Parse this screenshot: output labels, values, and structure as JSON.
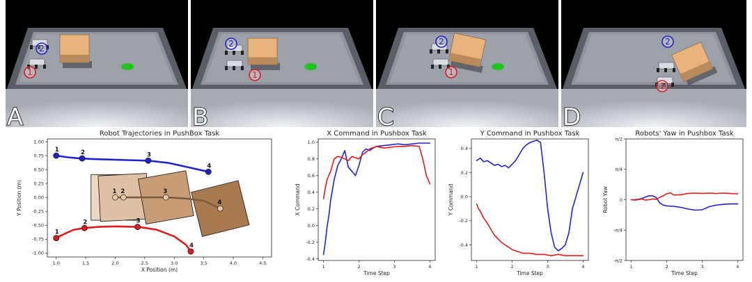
{
  "scenes": [
    {
      "letter": "A",
      "robot1": "1",
      "robot2": "2"
    },
    {
      "letter": "B",
      "robot1": "1",
      "robot2": "2"
    },
    {
      "letter": "C",
      "robot1": "1",
      "robot2": "2"
    },
    {
      "letter": "D",
      "robot1": "1",
      "robot2": "2"
    }
  ],
  "colors": {
    "red": "#e01b1b",
    "blue": "#1f23c8",
    "box": "#e8b47c",
    "goal": "#1fc41f"
  },
  "chart_data": [
    {
      "type": "line",
      "title": "Robot Trajectories in PushBox Task",
      "xlabel": "X Position (m)",
      "ylabel": "Y Position (m)",
      "xlim": [
        0.85,
        4.65
      ],
      "ylim": [
        -1.07,
        1.05
      ],
      "xticks": [
        "1.0",
        "1.5",
        "2.0",
        "2.5",
        "3.0",
        "3.5",
        "4.0",
        "4.5"
      ],
      "yticks": [
        "-1.00",
        "-0.75",
        "-0.50",
        "-0.25",
        "0.00",
        "0.25",
        "0.50",
        "0.75",
        "1.00"
      ],
      "series": [
        {
          "color": "#1f23c8",
          "x": [
            1.0,
            1.2,
            1.4,
            1.6,
            1.9,
            2.2,
            2.56,
            2.9,
            3.2,
            3.58
          ],
          "y": [
            0.75,
            0.72,
            0.7,
            0.69,
            0.68,
            0.67,
            0.66,
            0.62,
            0.55,
            0.46
          ]
        },
        {
          "color": "#e01b1b",
          "x": [
            1.0,
            1.15,
            1.3,
            1.48,
            1.7,
            2.0,
            2.4,
            2.7,
            3.0,
            3.2,
            3.28
          ],
          "y": [
            -0.73,
            -0.65,
            -0.58,
            -0.55,
            -0.53,
            -0.52,
            -0.53,
            -0.58,
            -0.7,
            -0.85,
            -0.97
          ]
        },
        {
          "color": "#7d5a3c",
          "x": [
            2.0,
            2.14,
            2.4,
            2.6,
            2.86,
            3.2,
            3.5,
            3.78
          ],
          "y": [
            0.0,
            0.0,
            0.0,
            0.0,
            0.0,
            -0.02,
            -0.06,
            -0.2
          ]
        }
      ],
      "waypoints": [
        {
          "label": "1",
          "x": 1.0,
          "y": 0.75,
          "color": "#1f23c8"
        },
        {
          "label": "2",
          "x": 1.44,
          "y": 0.7,
          "color": "#1f23c8"
        },
        {
          "label": "3",
          "x": 2.56,
          "y": 0.66,
          "color": "#1f23c8"
        },
        {
          "label": "4",
          "x": 3.58,
          "y": 0.46,
          "color": "#1f23c8"
        },
        {
          "label": "1",
          "x": 1.0,
          "y": -0.73,
          "color": "#e01b1b"
        },
        {
          "label": "2",
          "x": 1.48,
          "y": -0.55,
          "color": "#e01b1b"
        },
        {
          "label": "3",
          "x": 2.38,
          "y": -0.53,
          "color": "#e01b1b"
        },
        {
          "label": "4",
          "x": 3.28,
          "y": -0.97,
          "color": "#e01b1b"
        },
        {
          "label": "1",
          "x": 2.0,
          "y": 0.0,
          "color": "#7d5a3c"
        },
        {
          "label": "2",
          "x": 2.14,
          "y": 0.0,
          "color": "#7d5a3c"
        },
        {
          "label": "3",
          "x": 2.86,
          "y": 0.0,
          "color": "#7d5a3c"
        },
        {
          "label": "4",
          "x": 3.78,
          "y": -0.2,
          "color": "#7d5a3c"
        }
      ],
      "boxes": [
        {
          "cx": 2.0,
          "cy": 0.0,
          "angle": 0,
          "fill": "#ecd8c3"
        },
        {
          "cx": 2.14,
          "cy": 0.0,
          "angle": -3,
          "fill": "#dfc2a5"
        },
        {
          "cx": 2.86,
          "cy": 0.0,
          "angle": -10,
          "fill": "#c89d76"
        },
        {
          "cx": 3.78,
          "cy": -0.2,
          "angle": -14,
          "fill": "#a97950"
        }
      ],
      "box_size": 0.82
    },
    {
      "type": "line",
      "title": "X Command in Pushbox Task",
      "xlabel": "Time Step",
      "ylabel": "X Command",
      "xlim": [
        0.85,
        4.15
      ],
      "ylim": [
        -0.42,
        1.04
      ],
      "xticks": [
        "1",
        "2",
        "3",
        "4"
      ],
      "yticks": [
        "-0.4",
        "-0.2",
        "0.0",
        "0.2",
        "0.4",
        "0.6",
        "0.8",
        "1.0"
      ],
      "series": [
        {
          "color": "#1f23c8",
          "x": [
            1.0,
            1.05,
            1.1,
            1.15,
            1.2,
            1.3,
            1.4,
            1.5,
            1.6,
            1.7,
            1.8,
            1.9,
            2.0,
            2.1,
            2.2,
            2.3,
            2.4,
            2.5,
            2.7,
            2.9,
            3.1,
            3.3,
            3.5,
            3.7,
            3.9,
            4.0
          ],
          "y": [
            -0.35,
            -0.2,
            -0.02,
            0.12,
            0.3,
            0.55,
            0.72,
            0.8,
            0.9,
            0.7,
            0.65,
            0.6,
            0.72,
            0.88,
            0.92,
            0.9,
            0.93,
            0.95,
            0.96,
            0.97,
            0.98,
            0.97,
            0.98,
            0.99,
            0.99,
            0.99
          ]
        },
        {
          "color": "#e01b1b",
          "x": [
            1.0,
            1.05,
            1.1,
            1.2,
            1.3,
            1.4,
            1.5,
            1.6,
            1.7,
            1.8,
            2.0,
            2.1,
            2.2,
            2.3,
            2.5,
            2.7,
            2.9,
            3.1,
            3.3,
            3.5,
            3.7,
            3.8,
            3.9,
            4.0
          ],
          "y": [
            0.32,
            0.45,
            0.55,
            0.65,
            0.8,
            0.83,
            0.82,
            0.8,
            0.78,
            0.83,
            0.8,
            0.85,
            0.88,
            0.92,
            0.95,
            0.93,
            0.94,
            0.95,
            0.95,
            0.96,
            0.95,
            0.8,
            0.6,
            0.5
          ]
        }
      ]
    },
    {
      "type": "line",
      "title": "Y Command in Pushbox Task",
      "xlabel": "Time Step",
      "ylabel": "Y Command",
      "xlim": [
        0.85,
        4.15
      ],
      "ylim": [
        -0.53,
        0.48
      ],
      "xticks": [
        "1",
        "2",
        "3",
        "4"
      ],
      "yticks": [
        "-0.4",
        "-0.2",
        "0.0",
        "0.2",
        "0.4"
      ],
      "series": [
        {
          "color": "#1f23c8",
          "x": [
            1.0,
            1.1,
            1.2,
            1.3,
            1.4,
            1.5,
            1.6,
            1.7,
            1.8,
            1.9,
            2.0,
            2.1,
            2.2,
            2.3,
            2.4,
            2.5,
            2.6,
            2.7,
            2.8,
            2.9,
            3.0,
            3.1,
            3.2,
            3.3,
            3.4,
            3.5,
            3.6,
            3.7,
            3.8,
            3.9,
            4.0
          ],
          "y": [
            0.3,
            0.32,
            0.29,
            0.3,
            0.28,
            0.26,
            0.27,
            0.25,
            0.26,
            0.24,
            0.27,
            0.3,
            0.35,
            0.4,
            0.43,
            0.45,
            0.46,
            0.47,
            0.45,
            0.2,
            -0.1,
            -0.3,
            -0.42,
            -0.45,
            -0.43,
            -0.4,
            -0.3,
            -0.1,
            0.0,
            0.1,
            0.2
          ]
        },
        {
          "color": "#e01b1b",
          "x": [
            1.0,
            1.05,
            1.1,
            1.2,
            1.3,
            1.4,
            1.5,
            1.6,
            1.7,
            1.8,
            1.9,
            2.0,
            2.1,
            2.2,
            2.3,
            2.5,
            2.7,
            2.9,
            3.1,
            3.3,
            3.5,
            3.7,
            3.9,
            4.0
          ],
          "y": [
            -0.06,
            -0.1,
            -0.12,
            -0.18,
            -0.22,
            -0.27,
            -0.32,
            -0.35,
            -0.38,
            -0.4,
            -0.42,
            -0.44,
            -0.45,
            -0.46,
            -0.47,
            -0.47,
            -0.48,
            -0.48,
            -0.49,
            -0.48,
            -0.49,
            -0.49,
            -0.49,
            -0.49
          ]
        }
      ]
    },
    {
      "type": "line",
      "title": "Robots' Yaw in Pushbox Task",
      "xlabel": "Time Step",
      "ylabel": "Robot Yaw",
      "xlim": [
        0.85,
        4.15
      ],
      "ylim": [
        -1.5708,
        1.5708
      ],
      "xticks": [
        "1",
        "2",
        "3",
        "4"
      ],
      "yticks": [
        "-π/2",
        "-π/4",
        "0",
        "π/4",
        "π/2"
      ],
      "series": [
        {
          "color": "#1f23c8",
          "x": [
            1.0,
            1.1,
            1.2,
            1.3,
            1.4,
            1.5,
            1.6,
            1.7,
            1.8,
            1.9,
            2.0,
            2.2,
            2.4,
            2.6,
            2.8,
            3.0,
            3.1,
            3.2,
            3.4,
            3.6,
            3.8,
            4.0
          ],
          "y": [
            0.0,
            0.0,
            0.01,
            0.03,
            0.07,
            0.1,
            0.1,
            0.06,
            -0.08,
            -0.14,
            -0.16,
            -0.17,
            -0.2,
            -0.24,
            -0.27,
            -0.26,
            -0.22,
            -0.18,
            -0.14,
            -0.12,
            -0.11,
            -0.11
          ]
        },
        {
          "color": "#e01b1b",
          "x": [
            1.0,
            1.1,
            1.2,
            1.3,
            1.4,
            1.5,
            1.6,
            1.7,
            1.8,
            1.9,
            2.0,
            2.1,
            2.2,
            2.4,
            2.6,
            2.8,
            3.0,
            3.2,
            3.4,
            3.6,
            3.8,
            4.0
          ],
          "y": [
            0.0,
            -0.01,
            0.0,
            0.02,
            -0.01,
            0.0,
            0.02,
            0.01,
            0.06,
            0.1,
            0.15,
            0.18,
            0.12,
            0.13,
            0.16,
            0.17,
            0.16,
            0.17,
            0.16,
            0.17,
            0.16,
            0.15
          ]
        }
      ]
    }
  ]
}
